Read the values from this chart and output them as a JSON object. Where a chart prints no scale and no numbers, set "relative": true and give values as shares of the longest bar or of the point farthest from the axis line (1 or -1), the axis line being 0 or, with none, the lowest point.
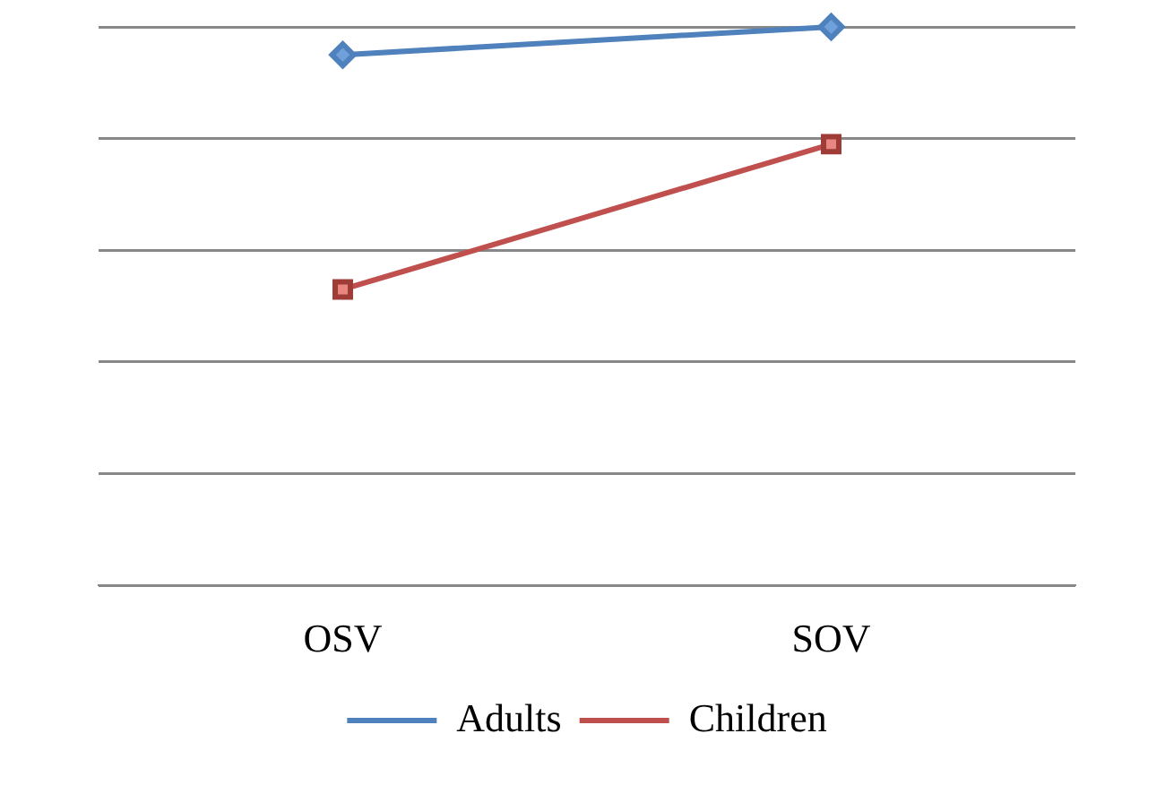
{
  "chart_data": {
    "type": "line",
    "relative": true,
    "categories": [
      "OSV",
      "SOV"
    ],
    "series": [
      {
        "name": "Adults",
        "color": "#4f81bd",
        "marker": "diamond",
        "values": [
          0.95,
          1
        ]
      },
      {
        "name": "Children",
        "color": "#c0504d",
        "marker": "square",
        "values": [
          0.53,
          0.79
        ]
      }
    ],
    "grid": "y",
    "legend": "bottom"
  }
}
